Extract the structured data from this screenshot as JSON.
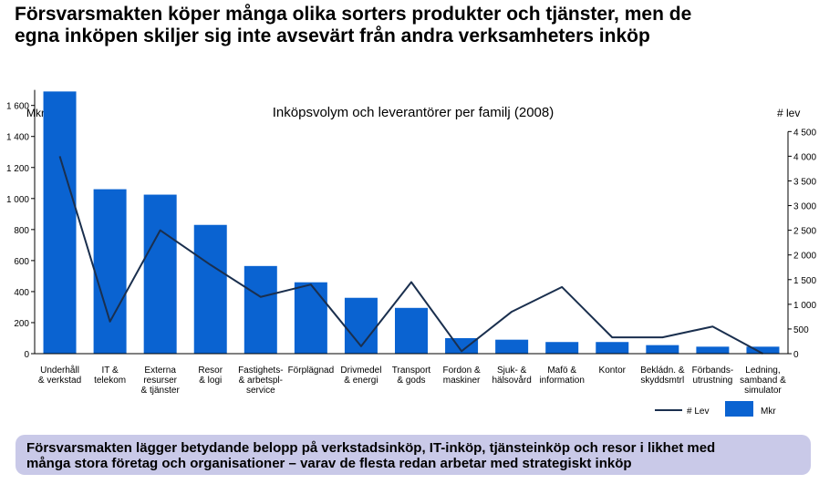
{
  "headline": {
    "line1": "Försvarsmakten köper många olika sorters produkter och tjänster, men de",
    "line2": "egna inköpen skiljer sig inte avsevärt från andra verksamheters inköp"
  },
  "callout": {
    "line1": "Försvarsmakten lägger betydande belopp på verkstadsinköp, IT-inköp, tjänsteinköp och resor i likhet med",
    "line2": "många stora företag och organisationer – varav de flesta redan arbetar med strategiskt inköp"
  },
  "colors": {
    "bar": "#0a63d1",
    "line": "#1a2f4e",
    "callout_bg": "#c9c9e8"
  },
  "chart_data": {
    "type": "bar",
    "title": "Inköpsvolym och leverantörer per familj (2008)",
    "ylabel_left": "Mkr",
    "ylabel_right": "# lev",
    "ylim_left": [
      0,
      1700
    ],
    "ylim_right": [
      0,
      4500
    ],
    "yticks_left": [
      "0",
      "200",
      "400",
      "600",
      "800",
      "1 000",
      "1 200",
      "1 400",
      "1 600"
    ],
    "yticks_right": [
      "0",
      "500",
      "1 000",
      "1 500",
      "2 000",
      "2 500",
      "3 000",
      "3 500",
      "4 000",
      "4 500"
    ],
    "categories": [
      [
        "Underhåll",
        "& verkstad"
      ],
      [
        "IT &",
        "telekom"
      ],
      [
        "Externa",
        "resurser",
        "& tjänster"
      ],
      [
        "Resor",
        "& logi"
      ],
      [
        "Fastighets-",
        "& arbetspl-",
        "service"
      ],
      [
        "Förplägnad"
      ],
      [
        "Drivmedel",
        "& energi"
      ],
      [
        "Transport",
        "& gods"
      ],
      [
        "Fordon &",
        "maskiner"
      ],
      [
        "Sjuk- &",
        "hälsovård"
      ],
      [
        "Mafö &",
        "information"
      ],
      [
        "Kontor"
      ],
      [
        "Bekládn. &",
        "skyddsmtrl"
      ],
      [
        "Förbands-",
        "utrustning"
      ],
      [
        "Ledning,",
        "samband &",
        "simulator"
      ]
    ],
    "series": [
      {
        "name": "Mkr",
        "type": "bar",
        "axis": "left",
        "values": [
          1690,
          1060,
          1025,
          830,
          565,
          460,
          360,
          295,
          100,
          90,
          75,
          75,
          55,
          45,
          45
        ]
      },
      {
        "name": "# Lev",
        "type": "line",
        "axis": "right",
        "values": [
          4000,
          650,
          2500,
          1800,
          1150,
          1400,
          150,
          1450,
          50,
          850,
          1350,
          330,
          330,
          550,
          0
        ]
      }
    ],
    "legend_position": "bottom-right",
    "grid": false
  }
}
